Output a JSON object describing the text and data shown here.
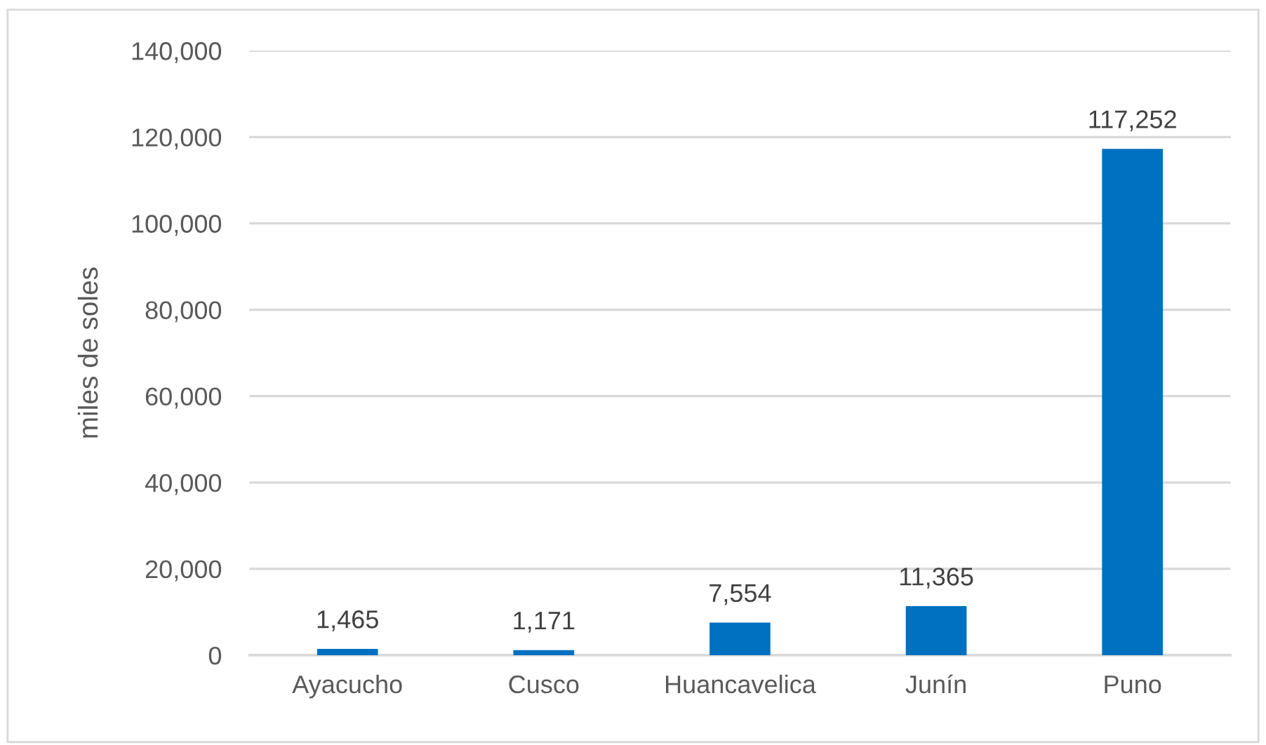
{
  "chart_data": {
    "type": "bar",
    "ylabel": "miles de soles",
    "categories": [
      "Ayacucho",
      "Cusco",
      "Huancavelica",
      "Junín",
      "Puno"
    ],
    "values": [
      1465,
      1171,
      7554,
      11365,
      117252
    ],
    "value_labels": [
      "1,465",
      "1,171",
      "7,554",
      "11,365",
      "117,252"
    ],
    "color": "#0070c0",
    "ylim": [
      0,
      140000
    ],
    "yticks": [
      {
        "value": 0,
        "label": "0"
      },
      {
        "value": 20000,
        "label": "20,000"
      },
      {
        "value": 40000,
        "label": "40,000"
      },
      {
        "value": 60000,
        "label": "60,000"
      },
      {
        "value": 80000,
        "label": "80,000"
      },
      {
        "value": 100000,
        "label": "100,000"
      },
      {
        "value": 120000,
        "label": "120,000"
      },
      {
        "value": 140000,
        "label": "140,000"
      }
    ],
    "grid": "y",
    "legend": false
  }
}
